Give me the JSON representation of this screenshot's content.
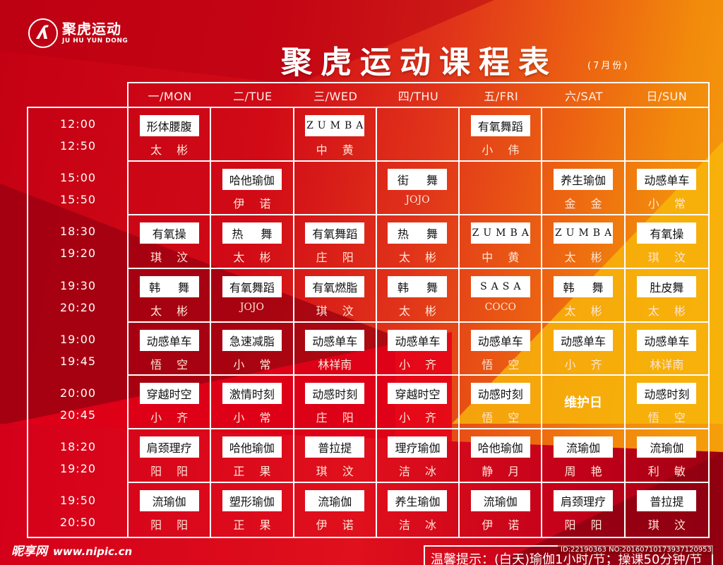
{
  "brand": {
    "name_cn": "聚虎运动",
    "name_en": "JU HU YUN DONG",
    "logo_icon": "dancer-circle-icon"
  },
  "title": "聚虎运动课程表",
  "month": "(7月份)",
  "days": [
    "一/MON",
    "二/TUE",
    "三/WED",
    "四/THU",
    "五/FRI",
    "六/SAT",
    "日/SUN"
  ],
  "slots": [
    {
      "start": "12:00",
      "end": "12:50"
    },
    {
      "start": "15:00",
      "end": "15:50"
    },
    {
      "start": "18:30",
      "end": "19:20"
    },
    {
      "start": "19:30",
      "end": "20:20"
    },
    {
      "start": "19:00",
      "end": "19:45"
    },
    {
      "start": "20:00",
      "end": "20:45"
    },
    {
      "start": "18:20",
      "end": "19:20"
    },
    {
      "start": "19:50",
      "end": "20:50"
    }
  ],
  "schedule": [
    [
      {
        "course": "形体腰腹",
        "teacher": "太 彬"
      },
      {
        "course": "",
        "teacher": ""
      },
      {
        "course": "ZUMBA",
        "teacher": "中 黄"
      },
      {
        "course": "",
        "teacher": ""
      },
      {
        "course": "有氧舞蹈",
        "teacher": "小 伟"
      },
      {
        "course": "",
        "teacher": ""
      },
      {
        "course": "",
        "teacher": ""
      }
    ],
    [
      {
        "course": "",
        "teacher": ""
      },
      {
        "course": "哈他瑜伽",
        "teacher": "伊 诺"
      },
      {
        "course": "",
        "teacher": ""
      },
      {
        "course": "街 舞",
        "teacher": "JOJO"
      },
      {
        "course": "",
        "teacher": ""
      },
      {
        "course": "养生瑜伽",
        "teacher": "金 金"
      },
      {
        "course": "动感单车",
        "teacher": "小 常"
      }
    ],
    [
      {
        "course": "有氧操",
        "teacher": "琪 汶"
      },
      {
        "course": "热 舞",
        "teacher": "太 彬"
      },
      {
        "course": "有氧舞蹈",
        "teacher": "庄 阳"
      },
      {
        "course": "热 舞",
        "teacher": "太 彬"
      },
      {
        "course": "ZUMBA",
        "teacher": "中 黄"
      },
      {
        "course": "ZUMBA",
        "teacher": "太 彬"
      },
      {
        "course": "有氧操",
        "teacher": "琪 汶"
      }
    ],
    [
      {
        "course": "韩 舞",
        "teacher": "太 彬"
      },
      {
        "course": "有氧舞蹈",
        "teacher": "JOJO"
      },
      {
        "course": "有氧燃脂",
        "teacher": "琪 汶"
      },
      {
        "course": "韩 舞",
        "teacher": "太 彬"
      },
      {
        "course": "SASA",
        "teacher": "COCO"
      },
      {
        "course": "韩 舞",
        "teacher": "太 彬"
      },
      {
        "course": "肚皮舞",
        "teacher": "太 彬"
      }
    ],
    [
      {
        "course": "动感单车",
        "teacher": "悟 空"
      },
      {
        "course": "急速减脂",
        "teacher": "小 常"
      },
      {
        "course": "动感单车",
        "teacher": "林祥南"
      },
      {
        "course": "动感单车",
        "teacher": "小 齐"
      },
      {
        "course": "动感单车",
        "teacher": "悟 空"
      },
      {
        "course": "动感单车",
        "teacher": "小 齐"
      },
      {
        "course": "动感单车",
        "teacher": "林详南"
      }
    ],
    [
      {
        "course": "穿越时空",
        "teacher": "小 齐"
      },
      {
        "course": "激情时刻",
        "teacher": "小 常"
      },
      {
        "course": "动感时刻",
        "teacher": "庄 阳"
      },
      {
        "course": "穿越时空",
        "teacher": "小 齐"
      },
      {
        "course": "动感时刻",
        "teacher": "悟 空"
      },
      {
        "course": "",
        "teacher": "",
        "special": "维护日"
      },
      {
        "course": "动感时刻",
        "teacher": "悟 空"
      }
    ],
    [
      {
        "course": "肩颈理疗",
        "teacher": "阳 阳"
      },
      {
        "course": "哈他瑜伽",
        "teacher": "正 果"
      },
      {
        "course": "普拉提",
        "teacher": "琪 汶"
      },
      {
        "course": "理疗瑜伽",
        "teacher": "洁 冰"
      },
      {
        "course": "哈他瑜伽",
        "teacher": "静 月"
      },
      {
        "course": "流瑜伽",
        "teacher": "周 艳"
      },
      {
        "course": "流瑜伽",
        "teacher": "利 敏"
      }
    ],
    [
      {
        "course": "流瑜伽",
        "teacher": "阳 阳"
      },
      {
        "course": "塑形瑜伽",
        "teacher": "正 果"
      },
      {
        "course": "流瑜伽",
        "teacher": "伊 诺"
      },
      {
        "course": "养生瑜伽",
        "teacher": "洁 冰"
      },
      {
        "course": "流瑜伽",
        "teacher": "伊 诺"
      },
      {
        "course": "肩颈理疗",
        "teacher": "阳 阳"
      },
      {
        "course": "普拉提",
        "teacher": "琪 汶"
      }
    ]
  ],
  "footer": {
    "watermark_cn": "昵享网",
    "watermark_url": "www.nipic.cn",
    "tip": "温馨提示：(白天)瑜伽1小时/节；操课50分钟/节",
    "id_tag": "ID:22190363 NO:20160710173937120953"
  },
  "colors": {
    "primary_red": "#c8001a",
    "orange": "#ec6212",
    "yellow": "#f6a40a",
    "grid_line": "#ffffff",
    "course_box_bg": "#ffffff",
    "course_text": "#111111"
  }
}
